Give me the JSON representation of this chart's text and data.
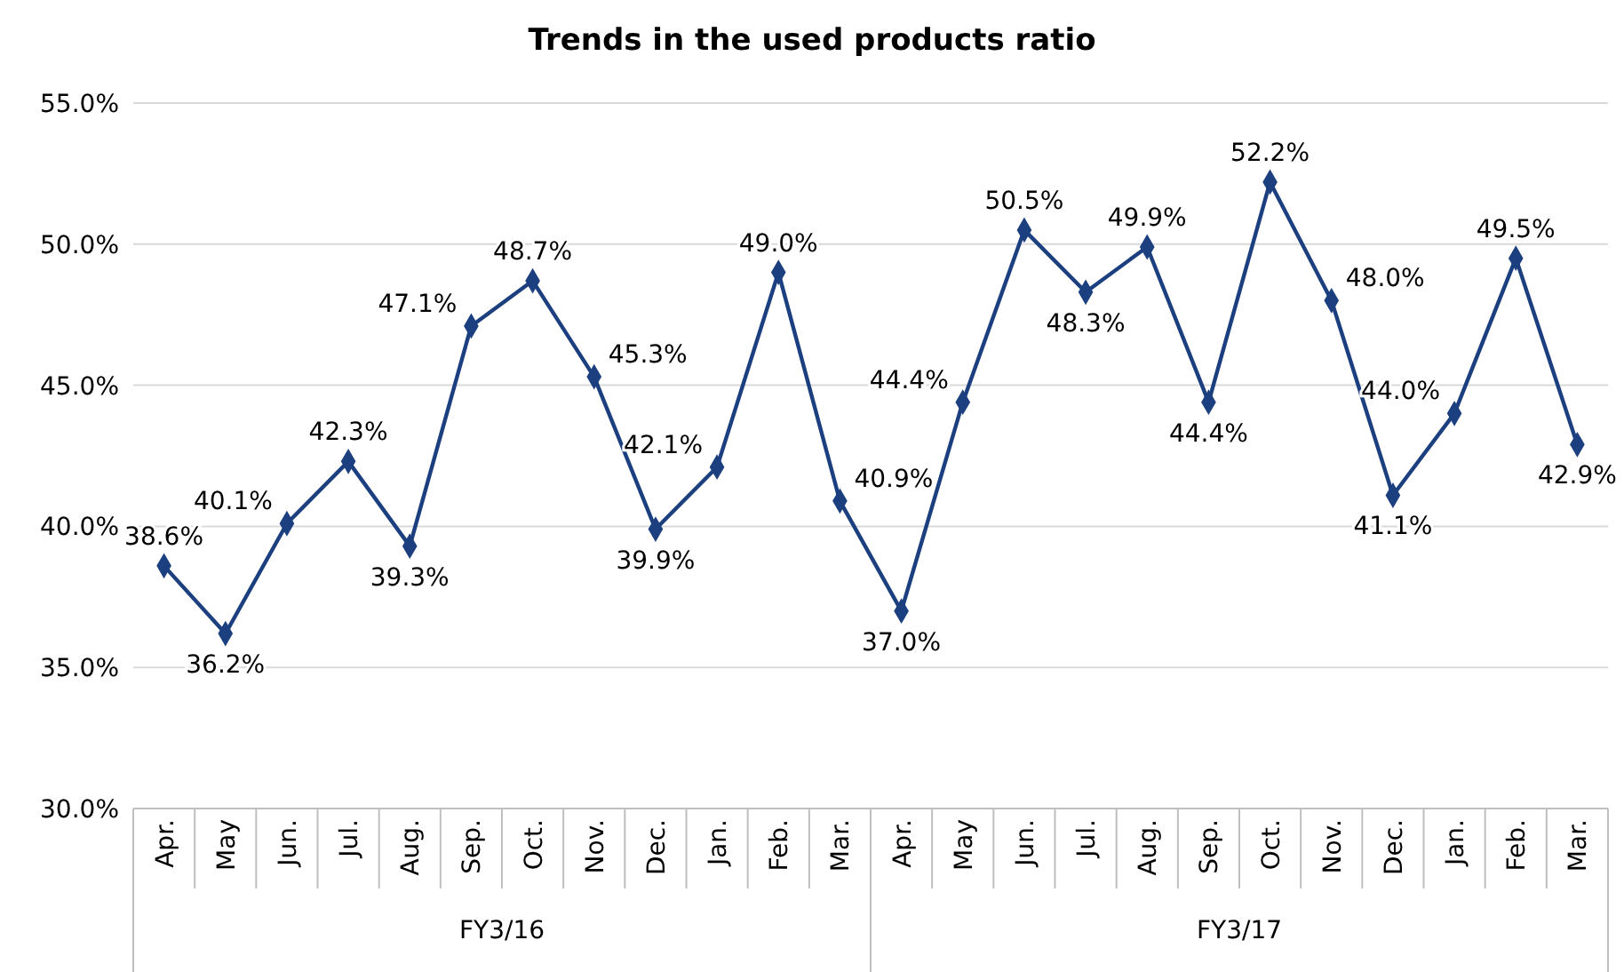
{
  "chart_data": {
    "type": "line",
    "title": "Trends in the used products ratio",
    "categories": [
      "Apr.",
      "May",
      "Jun.",
      "Jul.",
      "Aug.",
      "Sep.",
      "Oct.",
      "Nov.",
      "Dec.",
      "Jan.",
      "Feb.",
      "Mar.",
      "Apr.",
      "May",
      "Jun.",
      "Jul.",
      "Aug.",
      "Sep.",
      "Oct.",
      "Nov.",
      "Dec.",
      "Jan.",
      "Feb.",
      "Mar."
    ],
    "series": [
      {
        "color": "#1b3f7f",
        "values": [
          38.6,
          36.2,
          40.1,
          42.3,
          39.3,
          47.1,
          48.7,
          45.3,
          39.9,
          42.1,
          49.0,
          40.9,
          37.0,
          44.4,
          50.5,
          48.3,
          49.9,
          44.4,
          52.2,
          48.0,
          41.1,
          44.0,
          49.5,
          42.9
        ],
        "value_labels": [
          "38.6%",
          "36.2%",
          "40.1%",
          "42.3%",
          "39.3%",
          "47.1%",
          "48.7%",
          "45.3%",
          "39.9%",
          "42.1%",
          "49.0%",
          "40.9%",
          "37.0%",
          "44.4%",
          "50.5%",
          "48.3%",
          "49.9%",
          "44.4%",
          "52.2%",
          "48.0%",
          "41.1%",
          "44.0%",
          "49.5%",
          "42.9%"
        ]
      }
    ],
    "ylim": [
      30,
      55
    ],
    "yticks": [
      {
        "value": 30,
        "label": "30.0%"
      },
      {
        "value": 35,
        "label": "35.0%"
      },
      {
        "value": 40,
        "label": "40.0%"
      },
      {
        "value": 45,
        "label": "45.0%"
      },
      {
        "value": 50,
        "label": "50.0%"
      },
      {
        "value": 55,
        "label": "55.0%"
      }
    ],
    "grid": "y",
    "marker": "diamond",
    "line_style": "solid",
    "annotations": [
      "FY3/16",
      "FY3/17"
    ]
  }
}
